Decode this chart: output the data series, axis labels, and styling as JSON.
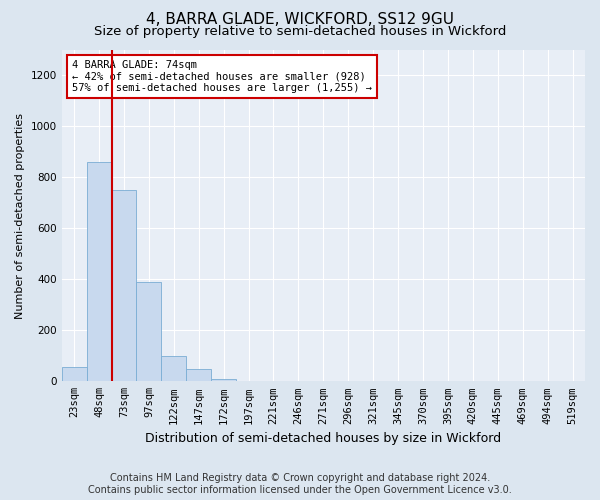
{
  "title": "4, BARRA GLADE, WICKFORD, SS12 9GU",
  "subtitle": "Size of property relative to semi-detached houses in Wickford",
  "xlabel": "Distribution of semi-detached houses by size in Wickford",
  "ylabel": "Number of semi-detached properties",
  "footer_line1": "Contains HM Land Registry data © Crown copyright and database right 2024.",
  "footer_line2": "Contains public sector information licensed under the Open Government Licence v3.0.",
  "categories": [
    "23sqm",
    "48sqm",
    "73sqm",
    "97sqm",
    "122sqm",
    "147sqm",
    "172sqm",
    "197sqm",
    "221sqm",
    "246sqm",
    "271sqm",
    "296sqm",
    "321sqm",
    "345sqm",
    "370sqm",
    "395sqm",
    "420sqm",
    "445sqm",
    "469sqm",
    "494sqm",
    "519sqm"
  ],
  "values": [
    55,
    860,
    750,
    390,
    100,
    50,
    10,
    0,
    0,
    0,
    0,
    0,
    0,
    0,
    0,
    0,
    0,
    0,
    0,
    0,
    0
  ],
  "bar_color": "#c8d9ee",
  "bar_edge_color": "#7aadd4",
  "highlight_index": 2,
  "highlight_line_color": "#cc0000",
  "annotation_text": "4 BARRA GLADE: 74sqm\n← 42% of semi-detached houses are smaller (928)\n57% of semi-detached houses are larger (1,255) →",
  "annotation_box_color": "#ffffff",
  "annotation_box_edge_color": "#cc0000",
  "ylim": [
    0,
    1300
  ],
  "yticks": [
    0,
    200,
    400,
    600,
    800,
    1000,
    1200
  ],
  "bg_color": "#dce6f0",
  "plot_bg_color": "#e8eef6",
  "title_fontsize": 11,
  "subtitle_fontsize": 9.5,
  "xlabel_fontsize": 9,
  "ylabel_fontsize": 8,
  "tick_fontsize": 7.5,
  "footer_fontsize": 7
}
